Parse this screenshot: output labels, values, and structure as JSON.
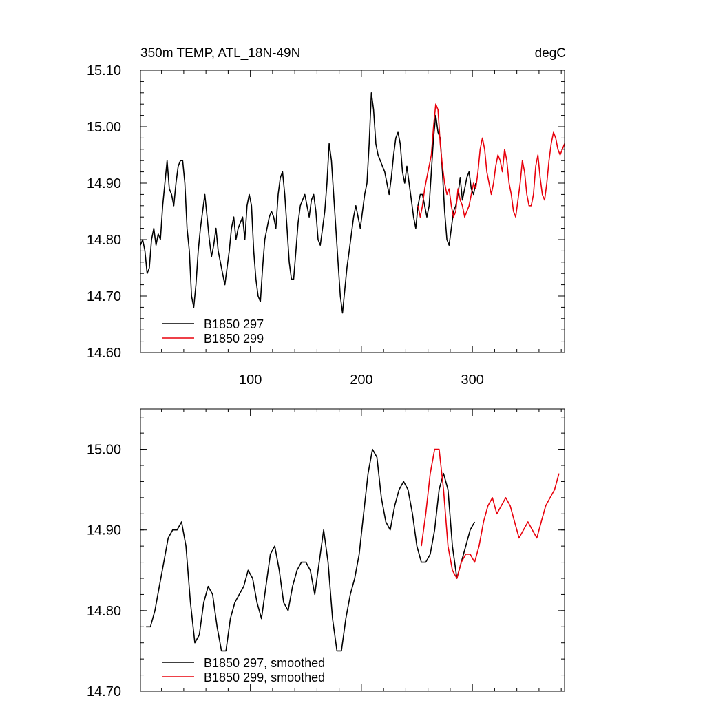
{
  "chart_data": [
    {
      "type": "line",
      "title": "350m TEMP, ATL_18N-49N",
      "units": "degC",
      "xlim": [
        1,
        383
      ],
      "ylim": [
        14.6,
        15.1
      ],
      "x_ticks": [
        100,
        200,
        300
      ],
      "x_tick_labels": [
        "100",
        "200",
        "300"
      ],
      "y_ticks": [
        14.6,
        14.7,
        14.8,
        14.9,
        15.0,
        15.1
      ],
      "y_tick_labels": [
        "14.60",
        "14.70",
        "14.80",
        "14.90",
        "15.00",
        "15.10"
      ],
      "legend_position": "bottom-left",
      "series": [
        {
          "name": "B1850 297",
          "color": "#000000",
          "x": [
            1,
            3,
            5,
            7,
            9,
            11,
            13,
            15,
            17,
            19,
            21,
            23,
            25,
            27,
            29,
            31,
            33,
            35,
            37,
            39,
            41,
            43,
            45,
            47,
            49,
            51,
            53,
            55,
            57,
            59,
            61,
            63,
            65,
            67,
            69,
            71,
            73,
            75,
            77,
            79,
            81,
            83,
            85,
            87,
            89,
            91,
            93,
            95,
            97,
            99,
            101,
            103,
            105,
            107,
            109,
            111,
            113,
            115,
            117,
            119,
            121,
            123,
            125,
            127,
            129,
            131,
            133,
            135,
            137,
            139,
            141,
            143,
            145,
            147,
            149,
            151,
            153,
            155,
            157,
            159,
            161,
            163,
            165,
            167,
            169,
            171,
            173,
            175,
            177,
            179,
            181,
            183,
            185,
            187,
            189,
            191,
            193,
            195,
            197,
            199,
            201,
            203,
            205,
            207,
            209,
            211,
            213,
            215,
            217,
            219,
            221,
            223,
            225,
            227,
            229,
            231,
            233,
            235,
            237,
            239,
            241,
            243,
            245,
            247,
            249,
            251,
            253,
            255,
            257,
            259,
            261,
            263,
            265,
            267,
            269,
            271,
            273,
            275,
            277,
            279,
            281,
            283,
            285,
            287,
            289,
            291,
            293,
            295,
            297,
            299,
            301,
            303
          ],
          "values": [
            14.79,
            14.8,
            14.78,
            14.74,
            14.75,
            14.8,
            14.82,
            14.79,
            14.81,
            14.8,
            14.86,
            14.9,
            14.94,
            14.89,
            14.88,
            14.86,
            14.9,
            14.93,
            14.94,
            14.94,
            14.9,
            14.82,
            14.78,
            14.7,
            14.68,
            14.72,
            14.78,
            14.82,
            14.85,
            14.88,
            14.84,
            14.8,
            14.77,
            14.79,
            14.82,
            14.78,
            14.76,
            14.74,
            14.72,
            14.75,
            14.78,
            14.82,
            14.84,
            14.8,
            14.82,
            14.83,
            14.84,
            14.8,
            14.86,
            14.88,
            14.86,
            14.78,
            14.73,
            14.7,
            14.69,
            14.75,
            14.8,
            14.82,
            14.84,
            14.85,
            14.84,
            14.82,
            14.88,
            14.91,
            14.92,
            14.88,
            14.82,
            14.76,
            14.73,
            14.73,
            14.78,
            14.83,
            14.86,
            14.87,
            14.88,
            14.86,
            14.84,
            14.87,
            14.88,
            14.85,
            14.8,
            14.79,
            14.82,
            14.85,
            14.9,
            14.97,
            14.94,
            14.88,
            14.82,
            14.76,
            14.7,
            14.67,
            14.71,
            14.75,
            14.78,
            14.81,
            14.84,
            14.86,
            14.84,
            14.82,
            14.85,
            14.88,
            14.9,
            14.97,
            15.06,
            15.03,
            14.97,
            14.95,
            14.94,
            14.93,
            14.92,
            14.9,
            14.88,
            14.91,
            14.95,
            14.98,
            14.99,
            14.97,
            14.92,
            14.9,
            14.93,
            14.9,
            14.87,
            14.84,
            14.82,
            14.86,
            14.88,
            14.88,
            14.86,
            14.84,
            14.86,
            14.92,
            14.98,
            15.02,
            14.99,
            14.98,
            14.92,
            14.85,
            14.8,
            14.79,
            14.82,
            14.85,
            14.86,
            14.88,
            14.91,
            14.87,
            14.89,
            14.91,
            14.92,
            14.89,
            14.88,
            14.9
          ]
        },
        {
          "name": "B1850 299",
          "color": "#e8000b",
          "x": [
            251,
            253,
            255,
            257,
            259,
            261,
            263,
            265,
            267,
            269,
            271,
            273,
            275,
            277,
            279,
            281,
            283,
            285,
            287,
            289,
            291,
            293,
            295,
            297,
            299,
            301,
            303,
            305,
            307,
            309,
            311,
            313,
            315,
            317,
            319,
            321,
            323,
            325,
            327,
            329,
            331,
            333,
            335,
            337,
            339,
            341,
            343,
            345,
            347,
            349,
            351,
            353,
            355,
            357,
            359,
            361,
            363,
            365,
            367,
            369,
            371,
            373,
            375,
            377,
            379,
            381,
            383
          ],
          "values": [
            14.86,
            14.84,
            14.86,
            14.89,
            14.91,
            14.93,
            14.95,
            15.0,
            15.04,
            15.03,
            14.97,
            14.93,
            14.9,
            14.88,
            14.89,
            14.86,
            14.84,
            14.85,
            14.89,
            14.87,
            14.86,
            14.84,
            14.85,
            14.86,
            14.88,
            14.9,
            14.89,
            14.92,
            14.96,
            14.98,
            14.96,
            14.92,
            14.9,
            14.88,
            14.9,
            14.93,
            14.95,
            14.94,
            14.92,
            14.96,
            14.94,
            14.9,
            14.88,
            14.85,
            14.84,
            14.87,
            14.9,
            14.94,
            14.92,
            14.88,
            14.86,
            14.86,
            14.88,
            14.93,
            14.95,
            14.91,
            14.88,
            14.87,
            14.9,
            14.94,
            14.97,
            14.99,
            14.98,
            14.96,
            14.95,
            14.96,
            14.97
          ]
        }
      ]
    },
    {
      "type": "line",
      "title": "",
      "xlim": [
        1,
        383
      ],
      "ylim": [
        14.7,
        15.05
      ],
      "x_ticks": [
        100,
        200,
        300
      ],
      "x_tick_labels": [],
      "y_ticks": [
        14.7,
        14.8,
        14.9,
        15.0
      ],
      "y_tick_labels": [
        "14.70",
        "14.80",
        "14.90",
        "15.00"
      ],
      "legend_position": "bottom-left",
      "series": [
        {
          "name": "B1850 297, smoothed",
          "color": "#000000",
          "x": [
            6,
            10,
            14,
            18,
            22,
            26,
            30,
            34,
            38,
            42,
            46,
            50,
            54,
            58,
            62,
            66,
            70,
            74,
            78,
            82,
            86,
            90,
            94,
            98,
            102,
            106,
            110,
            114,
            118,
            122,
            126,
            130,
            134,
            138,
            142,
            146,
            150,
            154,
            158,
            162,
            166,
            170,
            174,
            178,
            182,
            186,
            190,
            194,
            198,
            202,
            206,
            210,
            214,
            218,
            222,
            226,
            230,
            234,
            238,
            242,
            246,
            250,
            254,
            258,
            262,
            266,
            270,
            274,
            278,
            282,
            286,
            290,
            294,
            298,
            302
          ],
          "values": [
            14.78,
            14.78,
            14.8,
            14.83,
            14.86,
            14.89,
            14.9,
            14.9,
            14.91,
            14.88,
            14.81,
            14.76,
            14.77,
            14.81,
            14.83,
            14.82,
            14.78,
            14.75,
            14.75,
            14.79,
            14.81,
            14.82,
            14.83,
            14.85,
            14.84,
            14.81,
            14.79,
            14.83,
            14.87,
            14.88,
            14.85,
            14.81,
            14.8,
            14.83,
            14.85,
            14.86,
            14.86,
            14.85,
            14.82,
            14.86,
            14.9,
            14.86,
            14.79,
            14.75,
            14.75,
            14.79,
            14.82,
            14.84,
            14.87,
            14.92,
            14.97,
            15.0,
            14.99,
            14.94,
            14.91,
            14.9,
            14.93,
            14.95,
            14.96,
            14.95,
            14.92,
            14.88,
            14.86,
            14.86,
            14.87,
            14.9,
            14.95,
            14.97,
            14.95,
            14.88,
            14.84,
            14.86,
            14.88,
            14.9,
            14.91
          ]
        },
        {
          "name": "B1850 299, smoothed",
          "color": "#e8000b",
          "x": [
            254,
            258,
            262,
            266,
            270,
            274,
            278,
            282,
            286,
            290,
            294,
            298,
            302,
            306,
            310,
            314,
            318,
            322,
            326,
            330,
            334,
            338,
            342,
            346,
            350,
            354,
            358,
            362,
            366,
            370,
            374,
            378
          ],
          "values": [
            14.88,
            14.92,
            14.97,
            15.0,
            15.0,
            14.95,
            14.88,
            14.85,
            14.84,
            14.86,
            14.87,
            14.87,
            14.86,
            14.88,
            14.91,
            14.93,
            14.94,
            14.92,
            14.93,
            14.94,
            14.93,
            14.91,
            14.89,
            14.9,
            14.91,
            14.9,
            14.89,
            14.91,
            14.93,
            14.94,
            14.95,
            14.97
          ]
        }
      ]
    }
  ]
}
